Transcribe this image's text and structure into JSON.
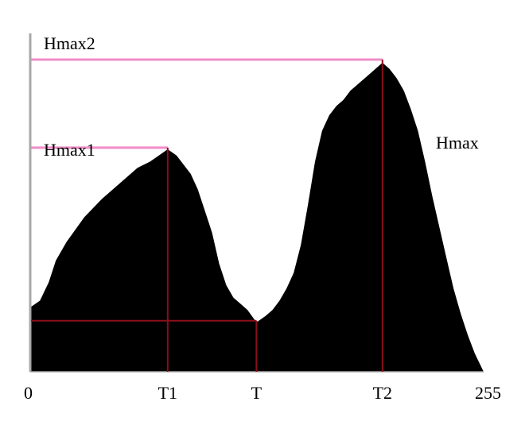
{
  "chart_data": {
    "type": "area",
    "title": "",
    "xlabel": "",
    "ylabel": "",
    "xlim": [
      0,
      255
    ],
    "ylim": [
      0,
      100
    ],
    "grid": false,
    "x_tick_labels": [
      {
        "x": 0,
        "label": "0"
      },
      {
        "x": 77,
        "label": "T1"
      },
      {
        "x": 127,
        "label": "T"
      },
      {
        "x": 198,
        "label": "T2"
      },
      {
        "x": 255,
        "label": "255"
      }
    ],
    "series": [
      {
        "x": [
          0,
          5,
          10,
          14,
          20,
          30,
          40,
          50,
          60,
          67,
          72,
          77,
          82,
          86,
          90,
          94,
          98,
          102,
          106,
          110,
          114,
          118,
          122,
          127,
          132,
          136,
          140,
          144,
          148,
          152,
          156,
          160,
          164,
          168,
          172,
          176,
          180,
          184,
          188,
          192,
          196,
          198,
          202,
          206,
          210,
          214,
          218,
          222,
          226,
          230,
          234,
          238,
          242,
          246,
          250,
          255
        ],
        "values": [
          21,
          23,
          29,
          36,
          42,
          50,
          56,
          61,
          66,
          68,
          70,
          72,
          70,
          67,
          64,
          59,
          52,
          45,
          35,
          28,
          24,
          22,
          20,
          16,
          18,
          20,
          23,
          27,
          32,
          41,
          54,
          68,
          78,
          83,
          86,
          88,
          91,
          93,
          95,
          97,
          99,
          100,
          98,
          95,
          91,
          85,
          78,
          68,
          57,
          47,
          37,
          27,
          19,
          12,
          6,
          0
        ]
      }
    ],
    "annotations": {
      "hmax1": {
        "label": "Hmax1",
        "x": 77,
        "y": 72
      },
      "hmax2": {
        "label": "Hmax2",
        "x": 198,
        "y": 100
      },
      "threshold": {
        "x": 127,
        "y": 16
      },
      "hmax_label": "Hmax"
    },
    "colors": {
      "fill": "#000000",
      "hmax_line": "#f08cc8",
      "marker_line": "#8b0f1a",
      "axis": "#a8a8a8"
    }
  }
}
